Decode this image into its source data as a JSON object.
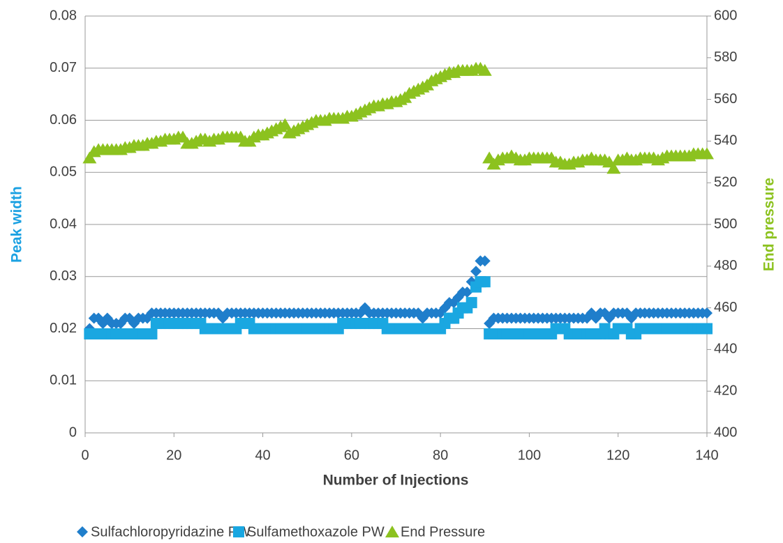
{
  "chart_data": {
    "type": "scatter",
    "xlabel": "Number of Injections",
    "ylabel": "Peak width",
    "y2label": "End pressure",
    "ylabel_color": "#1ba1e2",
    "y2label_color": "#8cc21f",
    "xlim": [
      0,
      140
    ],
    "xticks": [
      0,
      20,
      40,
      60,
      80,
      100,
      120,
      140
    ],
    "ylim": [
      0,
      0.08
    ],
    "yticks": [
      0,
      0.01,
      0.02,
      0.03,
      0.04,
      0.05,
      0.06,
      0.07,
      0.08
    ],
    "y2lim": [
      400,
      600
    ],
    "y2ticks": [
      400,
      420,
      440,
      460,
      480,
      500,
      520,
      540,
      560,
      580,
      600
    ],
    "grid": true,
    "legend": "bottom",
    "x": [
      1,
      2,
      3,
      4,
      5,
      6,
      7,
      8,
      9,
      10,
      11,
      12,
      13,
      14,
      15,
      16,
      17,
      18,
      19,
      20,
      21,
      22,
      23,
      24,
      25,
      26,
      27,
      28,
      29,
      30,
      31,
      32,
      33,
      34,
      35,
      36,
      37,
      38,
      39,
      40,
      41,
      42,
      43,
      44,
      45,
      46,
      47,
      48,
      49,
      50,
      51,
      52,
      53,
      54,
      55,
      56,
      57,
      58,
      59,
      60,
      61,
      62,
      63,
      64,
      65,
      66,
      67,
      68,
      69,
      70,
      71,
      72,
      73,
      74,
      75,
      76,
      77,
      78,
      79,
      80,
      81,
      82,
      83,
      84,
      85,
      86,
      87,
      88,
      89,
      90,
      91,
      92,
      93,
      94,
      95,
      96,
      97,
      98,
      99,
      100,
      101,
      102,
      103,
      104,
      105,
      106,
      107,
      108,
      109,
      110,
      111,
      112,
      113,
      114,
      115,
      116,
      117,
      118,
      119,
      120,
      121,
      122,
      123,
      124,
      125,
      126,
      127,
      128,
      129,
      130,
      131,
      132,
      133,
      134,
      135,
      136,
      137,
      138,
      139,
      140
    ],
    "series": [
      {
        "name": "Sulfachloropyridazine PW",
        "color": "#1f7ecb",
        "marker": "diamond",
        "values": [
          0.02,
          0.022,
          0.022,
          0.021,
          0.022,
          0.021,
          0.021,
          0.021,
          0.022,
          0.022,
          0.021,
          0.022,
          0.022,
          0.022,
          0.023,
          0.023,
          0.023,
          0.023,
          0.023,
          0.023,
          0.023,
          0.023,
          0.023,
          0.023,
          0.023,
          0.023,
          0.023,
          0.023,
          0.023,
          0.023,
          0.022,
          0.023,
          0.023,
          0.023,
          0.023,
          0.023,
          0.023,
          0.023,
          0.023,
          0.023,
          0.023,
          0.023,
          0.023,
          0.023,
          0.023,
          0.023,
          0.023,
          0.023,
          0.023,
          0.023,
          0.023,
          0.023,
          0.023,
          0.023,
          0.023,
          0.023,
          0.023,
          0.023,
          0.023,
          0.023,
          0.023,
          0.023,
          0.024,
          0.023,
          0.023,
          0.023,
          0.023,
          0.023,
          0.023,
          0.023,
          0.023,
          0.023,
          0.023,
          0.023,
          0.023,
          0.022,
          0.023,
          0.023,
          0.023,
          0.023,
          0.024,
          0.025,
          0.025,
          0.026,
          0.027,
          0.027,
          0.029,
          0.031,
          0.033,
          0.033,
          0.021,
          0.022,
          0.022,
          0.022,
          0.022,
          0.022,
          0.022,
          0.022,
          0.022,
          0.022,
          0.022,
          0.022,
          0.022,
          0.022,
          0.022,
          0.022,
          0.022,
          0.022,
          0.022,
          0.022,
          0.022,
          0.022,
          0.022,
          0.023,
          0.022,
          0.023,
          0.023,
          0.022,
          0.023,
          0.023,
          0.023,
          0.023,
          0.022,
          0.023,
          0.023,
          0.023,
          0.023,
          0.023,
          0.023,
          0.023,
          0.023,
          0.023,
          0.023,
          0.023,
          0.023,
          0.023,
          0.023,
          0.023,
          0.023,
          0.023
        ]
      },
      {
        "name": "Sulfamethoxazole PW",
        "color": "#1aa7e1",
        "marker": "square",
        "values": [
          0.019,
          0.019,
          0.019,
          0.019,
          0.019,
          0.019,
          0.019,
          0.019,
          0.019,
          0.019,
          0.019,
          0.019,
          0.019,
          0.019,
          0.019,
          0.021,
          0.021,
          0.021,
          0.021,
          0.021,
          0.021,
          0.021,
          0.021,
          0.021,
          0.021,
          0.021,
          0.02,
          0.02,
          0.02,
          0.02,
          0.02,
          0.02,
          0.02,
          0.02,
          0.021,
          0.021,
          0.021,
          0.02,
          0.02,
          0.02,
          0.02,
          0.02,
          0.02,
          0.02,
          0.02,
          0.02,
          0.02,
          0.02,
          0.02,
          0.02,
          0.02,
          0.02,
          0.02,
          0.02,
          0.02,
          0.02,
          0.02,
          0.021,
          0.021,
          0.021,
          0.021,
          0.021,
          0.021,
          0.021,
          0.021,
          0.021,
          0.021,
          0.02,
          0.02,
          0.02,
          0.02,
          0.02,
          0.02,
          0.02,
          0.02,
          0.02,
          0.02,
          0.02,
          0.02,
          0.02,
          0.021,
          0.022,
          0.022,
          0.023,
          0.024,
          0.024,
          0.025,
          0.028,
          0.029,
          0.029,
          0.019,
          0.019,
          0.019,
          0.019,
          0.019,
          0.019,
          0.019,
          0.019,
          0.019,
          0.019,
          0.019,
          0.019,
          0.019,
          0.019,
          0.019,
          0.02,
          0.02,
          0.02,
          0.019,
          0.019,
          0.019,
          0.019,
          0.019,
          0.019,
          0.019,
          0.019,
          0.02,
          0.019,
          0.019,
          0.02,
          0.02,
          0.02,
          0.019,
          0.019,
          0.02,
          0.02,
          0.02,
          0.02,
          0.02,
          0.02,
          0.02,
          0.02,
          0.02,
          0.02,
          0.02,
          0.02,
          0.02,
          0.02,
          0.02,
          0.02
        ]
      },
      {
        "name": "End Pressure",
        "color": "#8cc21f",
        "marker": "triangle",
        "axis": "y2",
        "values": [
          532,
          535,
          536,
          536,
          536,
          536,
          536,
          536,
          537,
          537,
          538,
          538,
          538,
          539,
          539,
          540,
          540,
          541,
          541,
          541,
          542,
          542,
          539,
          539,
          540,
          541,
          541,
          540,
          541,
          541,
          542,
          542,
          542,
          542,
          542,
          540,
          540,
          542,
          543,
          543,
          544,
          545,
          546,
          547,
          548,
          544,
          545,
          546,
          547,
          548,
          549,
          550,
          550,
          550,
          551,
          551,
          551,
          551,
          552,
          552,
          553,
          554,
          555,
          556,
          557,
          557,
          558,
          558,
          559,
          559,
          560,
          561,
          563,
          564,
          565,
          566,
          567,
          569,
          570,
          571,
          572,
          573,
          573,
          574,
          574,
          574,
          574,
          575,
          575,
          574,
          532,
          529,
          531,
          532,
          532,
          533,
          532,
          531,
          531,
          532,
          532,
          532,
          532,
          532,
          532,
          530,
          530,
          529,
          529,
          530,
          530,
          531,
          531,
          532,
          531,
          531,
          531,
          530,
          527,
          531,
          531,
          532,
          531,
          531,
          532,
          532,
          532,
          532,
          531,
          532,
          533,
          533,
          533,
          533,
          533,
          533,
          534,
          534,
          534,
          534
        ]
      }
    ]
  }
}
